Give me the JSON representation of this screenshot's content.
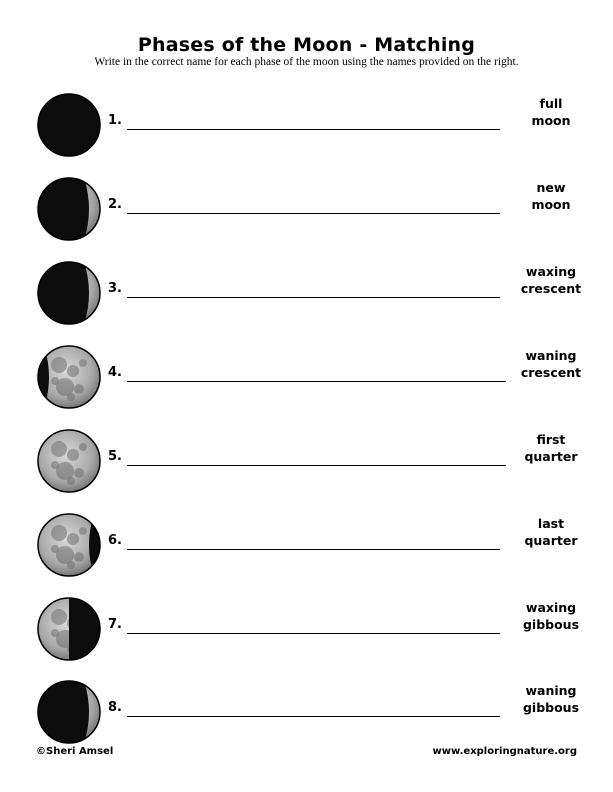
{
  "header": {
    "title": "Phases of the Moon - Matching",
    "instructions": "Write in the correct name for each phase of the moon using the names provided on the right."
  },
  "rows": [
    {
      "number": "1.",
      "phase_shown": "new moon",
      "word_bank": [
        "full",
        "moon"
      ]
    },
    {
      "number": "2.",
      "phase_shown": "waning crescent",
      "word_bank": [
        "new",
        "moon"
      ]
    },
    {
      "number": "3.",
      "phase_shown": "waning crescent",
      "word_bank": [
        "waxing",
        "crescent"
      ]
    },
    {
      "number": "4.",
      "phase_shown": "waning gibbous",
      "word_bank": [
        "waning",
        "crescent"
      ]
    },
    {
      "number": "5.",
      "phase_shown": "full moon",
      "word_bank": [
        "first",
        "quarter"
      ]
    },
    {
      "number": "6.",
      "phase_shown": "waxing gibbous",
      "word_bank": [
        "last",
        "quarter"
      ]
    },
    {
      "number": "7.",
      "phase_shown": "last quarter",
      "word_bank": [
        "waxing",
        "gibbous"
      ]
    },
    {
      "number": "8.",
      "phase_shown": "waning crescent",
      "word_bank": [
        "waning",
        "gibbous"
      ]
    }
  ],
  "footer": {
    "copyright": "©Sheri Amsel",
    "website": "www.exploringnature.org"
  }
}
